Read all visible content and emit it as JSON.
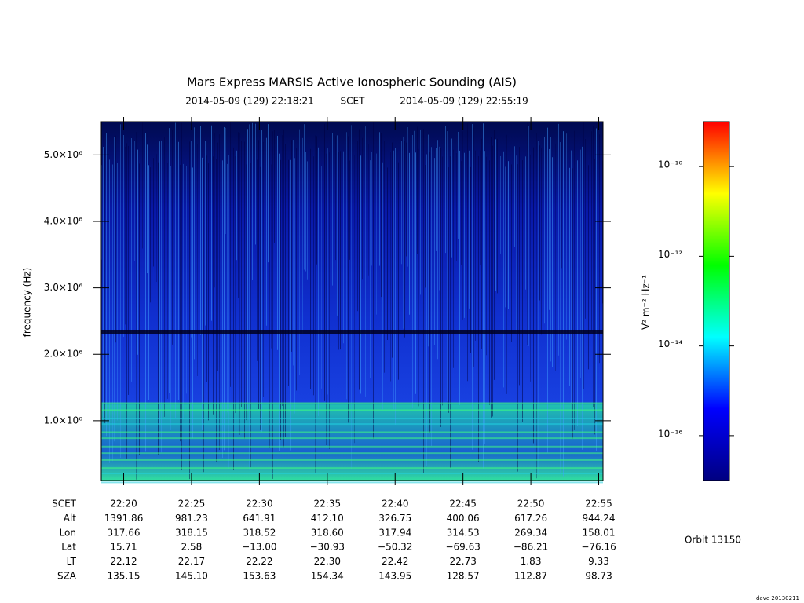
{
  "chart_data": {
    "type": "spectrogram",
    "title": "Mars Express MARSIS Active Ionospheric Sounding (AIS)",
    "start_time": "2014-05-09 (129) 22:18:21",
    "time_system": "SCET",
    "end_time": "2014-05-09 (129) 22:55:19",
    "ylabel": "frequency (Hz)",
    "ylim": [
      100000,
      5500000
    ],
    "yticks": [
      {
        "value": 1000000,
        "label": "1.0×10⁶"
      },
      {
        "value": 2000000,
        "label": "2.0×10⁶"
      },
      {
        "value": 3000000,
        "label": "3.0×10⁶"
      },
      {
        "value": 4000000,
        "label": "4.0×10⁶"
      },
      {
        "value": 5000000,
        "label": "5.0×10⁶"
      }
    ],
    "xlim": [
      "22:18:21",
      "22:55:19"
    ],
    "xticks": [
      "22:20",
      "22:25",
      "22:30",
      "22:35",
      "22:40",
      "22:45",
      "22:50",
      "22:55"
    ],
    "ephemeris": [
      {
        "label": "SCET"
      },
      {
        "label": "Alt",
        "values": [
          "1391.86",
          "981.23",
          "641.91",
          "412.10",
          "326.75",
          "400.06",
          "617.26",
          "944.24"
        ]
      },
      {
        "label": "Lon",
        "values": [
          "317.66",
          "318.15",
          "318.52",
          "318.60",
          "317.94",
          "314.53",
          "269.34",
          "158.01"
        ]
      },
      {
        "label": "Lat",
        "values": [
          "15.71",
          "2.58",
          "−13.00",
          "−30.93",
          "−50.32",
          "−69.63",
          "−86.21",
          "−76.16"
        ]
      },
      {
        "label": "LT",
        "values": [
          "22.12",
          "22.17",
          "22.22",
          "22.30",
          "22.42",
          "22.73",
          "1.83",
          "9.33"
        ]
      },
      {
        "label": "SZA",
        "values": [
          "135.15",
          "145.10",
          "153.63",
          "154.34",
          "143.95",
          "128.57",
          "112.87",
          "98.73"
        ]
      }
    ],
    "colorbar": {
      "label": "V² m⁻² Hz⁻¹",
      "log": true,
      "zlim": [
        1e-17,
        1e-09
      ],
      "ticks": [
        {
          "value": 1e-16,
          "label": "10⁻¹⁶"
        },
        {
          "value": 1e-14,
          "label": "10⁻¹⁴"
        },
        {
          "value": 1e-12,
          "label": "10⁻¹²"
        },
        {
          "value": 1e-10,
          "label": "10⁻¹⁰"
        }
      ],
      "colors": [
        "#000080",
        "#0000ff",
        "#00ffff",
        "#00ff00",
        "#ffff00",
        "#ff0000"
      ]
    },
    "orbit": "Orbit 13150",
    "version": "dave 20130211"
  }
}
